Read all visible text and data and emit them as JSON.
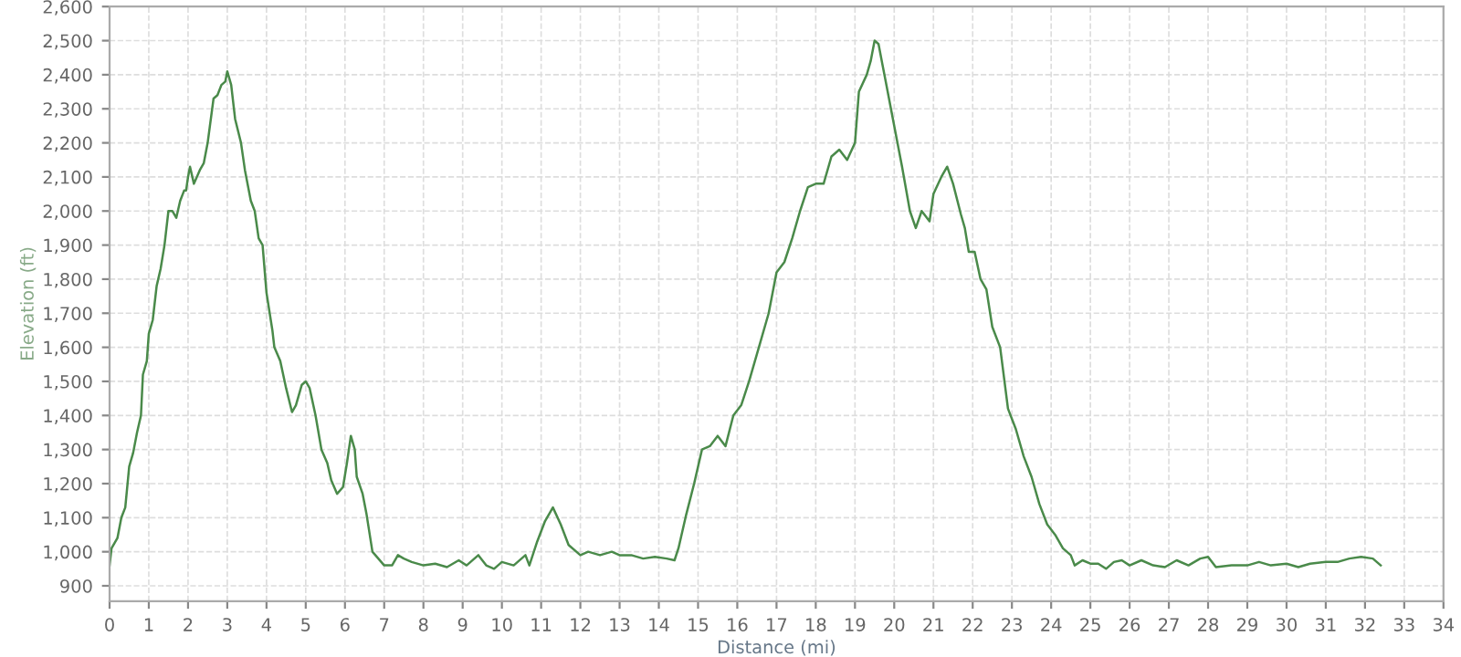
{
  "chart_data": {
    "type": "line",
    "xlabel": "Distance (mi)",
    "ylabel": "Elevation (ft)",
    "grid": true,
    "line_style": "solid",
    "marker": "none",
    "xlim": [
      0,
      34
    ],
    "ylim": [
      855,
      2600
    ],
    "xticks": [
      0,
      1,
      2,
      3,
      4,
      5,
      6,
      7,
      8,
      9,
      10,
      11,
      12,
      13,
      14,
      15,
      16,
      17,
      18,
      19,
      20,
      21,
      22,
      23,
      24,
      25,
      26,
      27,
      28,
      29,
      30,
      31,
      32,
      33,
      34
    ],
    "yticks": [
      {
        "value": 900,
        "label": "900"
      },
      {
        "value": 1000,
        "label": "1,000"
      },
      {
        "value": 1100,
        "label": "1,100"
      },
      {
        "value": 1200,
        "label": "1,200"
      },
      {
        "value": 1300,
        "label": "1,300"
      },
      {
        "value": 1400,
        "label": "1,400"
      },
      {
        "value": 1500,
        "label": "1,500"
      },
      {
        "value": 1600,
        "label": "1,600"
      },
      {
        "value": 1700,
        "label": "1,700"
      },
      {
        "value": 1800,
        "label": "1,800"
      },
      {
        "value": 1900,
        "label": "1,900"
      },
      {
        "value": 2000,
        "label": "2,000"
      },
      {
        "value": 2100,
        "label": "2,100"
      },
      {
        "value": 2200,
        "label": "2,200"
      },
      {
        "value": 2300,
        "label": "2,300"
      },
      {
        "value": 2400,
        "label": "2,400"
      },
      {
        "value": 2500,
        "label": "2,500"
      },
      {
        "value": 2600,
        "label": "2,600"
      }
    ],
    "series": [
      {
        "color": "#4a8a4a",
        "x": [
          0,
          0.05,
          0.2,
          0.3,
          0.4,
          0.5,
          0.6,
          0.7,
          0.8,
          0.85,
          0.95,
          1.0,
          1.1,
          1.2,
          1.3,
          1.4,
          1.5,
          1.6,
          1.7,
          1.8,
          1.9,
          1.95,
          2.0,
          2.05,
          2.15,
          2.3,
          2.4,
          2.5,
          2.65,
          2.75,
          2.85,
          2.95,
          3.0,
          3.1,
          3.2,
          3.35,
          3.45,
          3.6,
          3.7,
          3.8,
          3.9,
          4.0,
          4.15,
          4.2,
          4.35,
          4.5,
          4.65,
          4.75,
          4.9,
          5.0,
          5.1,
          5.25,
          5.4,
          5.55,
          5.65,
          5.8,
          5.95,
          6.05,
          6.15,
          6.25,
          6.3,
          6.45,
          6.55,
          6.7,
          6.85,
          7.0,
          7.2,
          7.35,
          7.5,
          7.7,
          8.0,
          8.3,
          8.6,
          8.9,
          9.1,
          9.4,
          9.6,
          9.8,
          10.0,
          10.3,
          10.6,
          10.7,
          10.9,
          11.1,
          11.3,
          11.5,
          11.7,
          12.0,
          12.2,
          12.5,
          12.8,
          13.0,
          13.3,
          13.6,
          13.9,
          14.2,
          14.4,
          14.5,
          14.7,
          14.9,
          15.1,
          15.3,
          15.5,
          15.7,
          15.9,
          16.1,
          16.3,
          16.5,
          16.8,
          17.0,
          17.2,
          17.4,
          17.6,
          17.8,
          18.0,
          18.2,
          18.4,
          18.6,
          18.8,
          19.0,
          19.1,
          19.3,
          19.4,
          19.5,
          19.6,
          19.7,
          19.8,
          20.0,
          20.2,
          20.4,
          20.55,
          20.7,
          20.9,
          21.0,
          21.2,
          21.35,
          21.5,
          21.7,
          21.8,
          21.9,
          22.05,
          22.2,
          22.35,
          22.5,
          22.7,
          22.9,
          23.1,
          23.3,
          23.5,
          23.7,
          23.9,
          24.1,
          24.3,
          24.5,
          24.6,
          24.8,
          25.0,
          25.2,
          25.4,
          25.6,
          25.8,
          26.0,
          26.3,
          26.6,
          26.9,
          27.2,
          27.5,
          27.8,
          28.0,
          28.2,
          28.6,
          29.0,
          29.3,
          29.6,
          30.0,
          30.3,
          30.6,
          31.0,
          31.3,
          31.6,
          31.9,
          32.2,
          32.4
        ],
        "values": [
          960,
          1010,
          1040,
          1100,
          1130,
          1250,
          1290,
          1350,
          1400,
          1520,
          1560,
          1640,
          1680,
          1780,
          1830,
          1900,
          2000,
          2000,
          1980,
          2030,
          2060,
          2060,
          2100,
          2130,
          2080,
          2120,
          2140,
          2200,
          2330,
          2340,
          2370,
          2380,
          2410,
          2370,
          2270,
          2200,
          2120,
          2030,
          2000,
          1920,
          1900,
          1760,
          1650,
          1600,
          1560,
          1480,
          1410,
          1430,
          1490,
          1500,
          1480,
          1400,
          1300,
          1260,
          1210,
          1170,
          1190,
          1260,
          1340,
          1300,
          1220,
          1170,
          1110,
          1000,
          980,
          960,
          960,
          990,
          980,
          970,
          960,
          965,
          955,
          975,
          960,
          990,
          960,
          950,
          970,
          960,
          990,
          960,
          1030,
          1090,
          1130,
          1080,
          1020,
          990,
          1000,
          990,
          1000,
          990,
          990,
          980,
          985,
          980,
          975,
          1010,
          1110,
          1200,
          1300,
          1310,
          1340,
          1310,
          1400,
          1430,
          1500,
          1580,
          1700,
          1820,
          1850,
          1920,
          2000,
          2070,
          2080,
          2080,
          2160,
          2180,
          2150,
          2200,
          2350,
          2400,
          2440,
          2500,
          2490,
          2430,
          2370,
          2250,
          2130,
          2000,
          1950,
          2000,
          1970,
          2050,
          2100,
          2130,
          2080,
          1990,
          1950,
          1880,
          1880,
          1800,
          1770,
          1660,
          1600,
          1420,
          1360,
          1280,
          1220,
          1140,
          1080,
          1050,
          1010,
          990,
          960,
          975,
          965,
          965,
          950,
          970,
          975,
          960,
          975,
          960,
          955,
          975,
          960,
          980,
          985,
          955,
          960,
          960,
          970,
          960,
          965,
          955,
          965,
          970,
          970,
          980,
          985,
          980,
          960
        ]
      }
    ]
  }
}
